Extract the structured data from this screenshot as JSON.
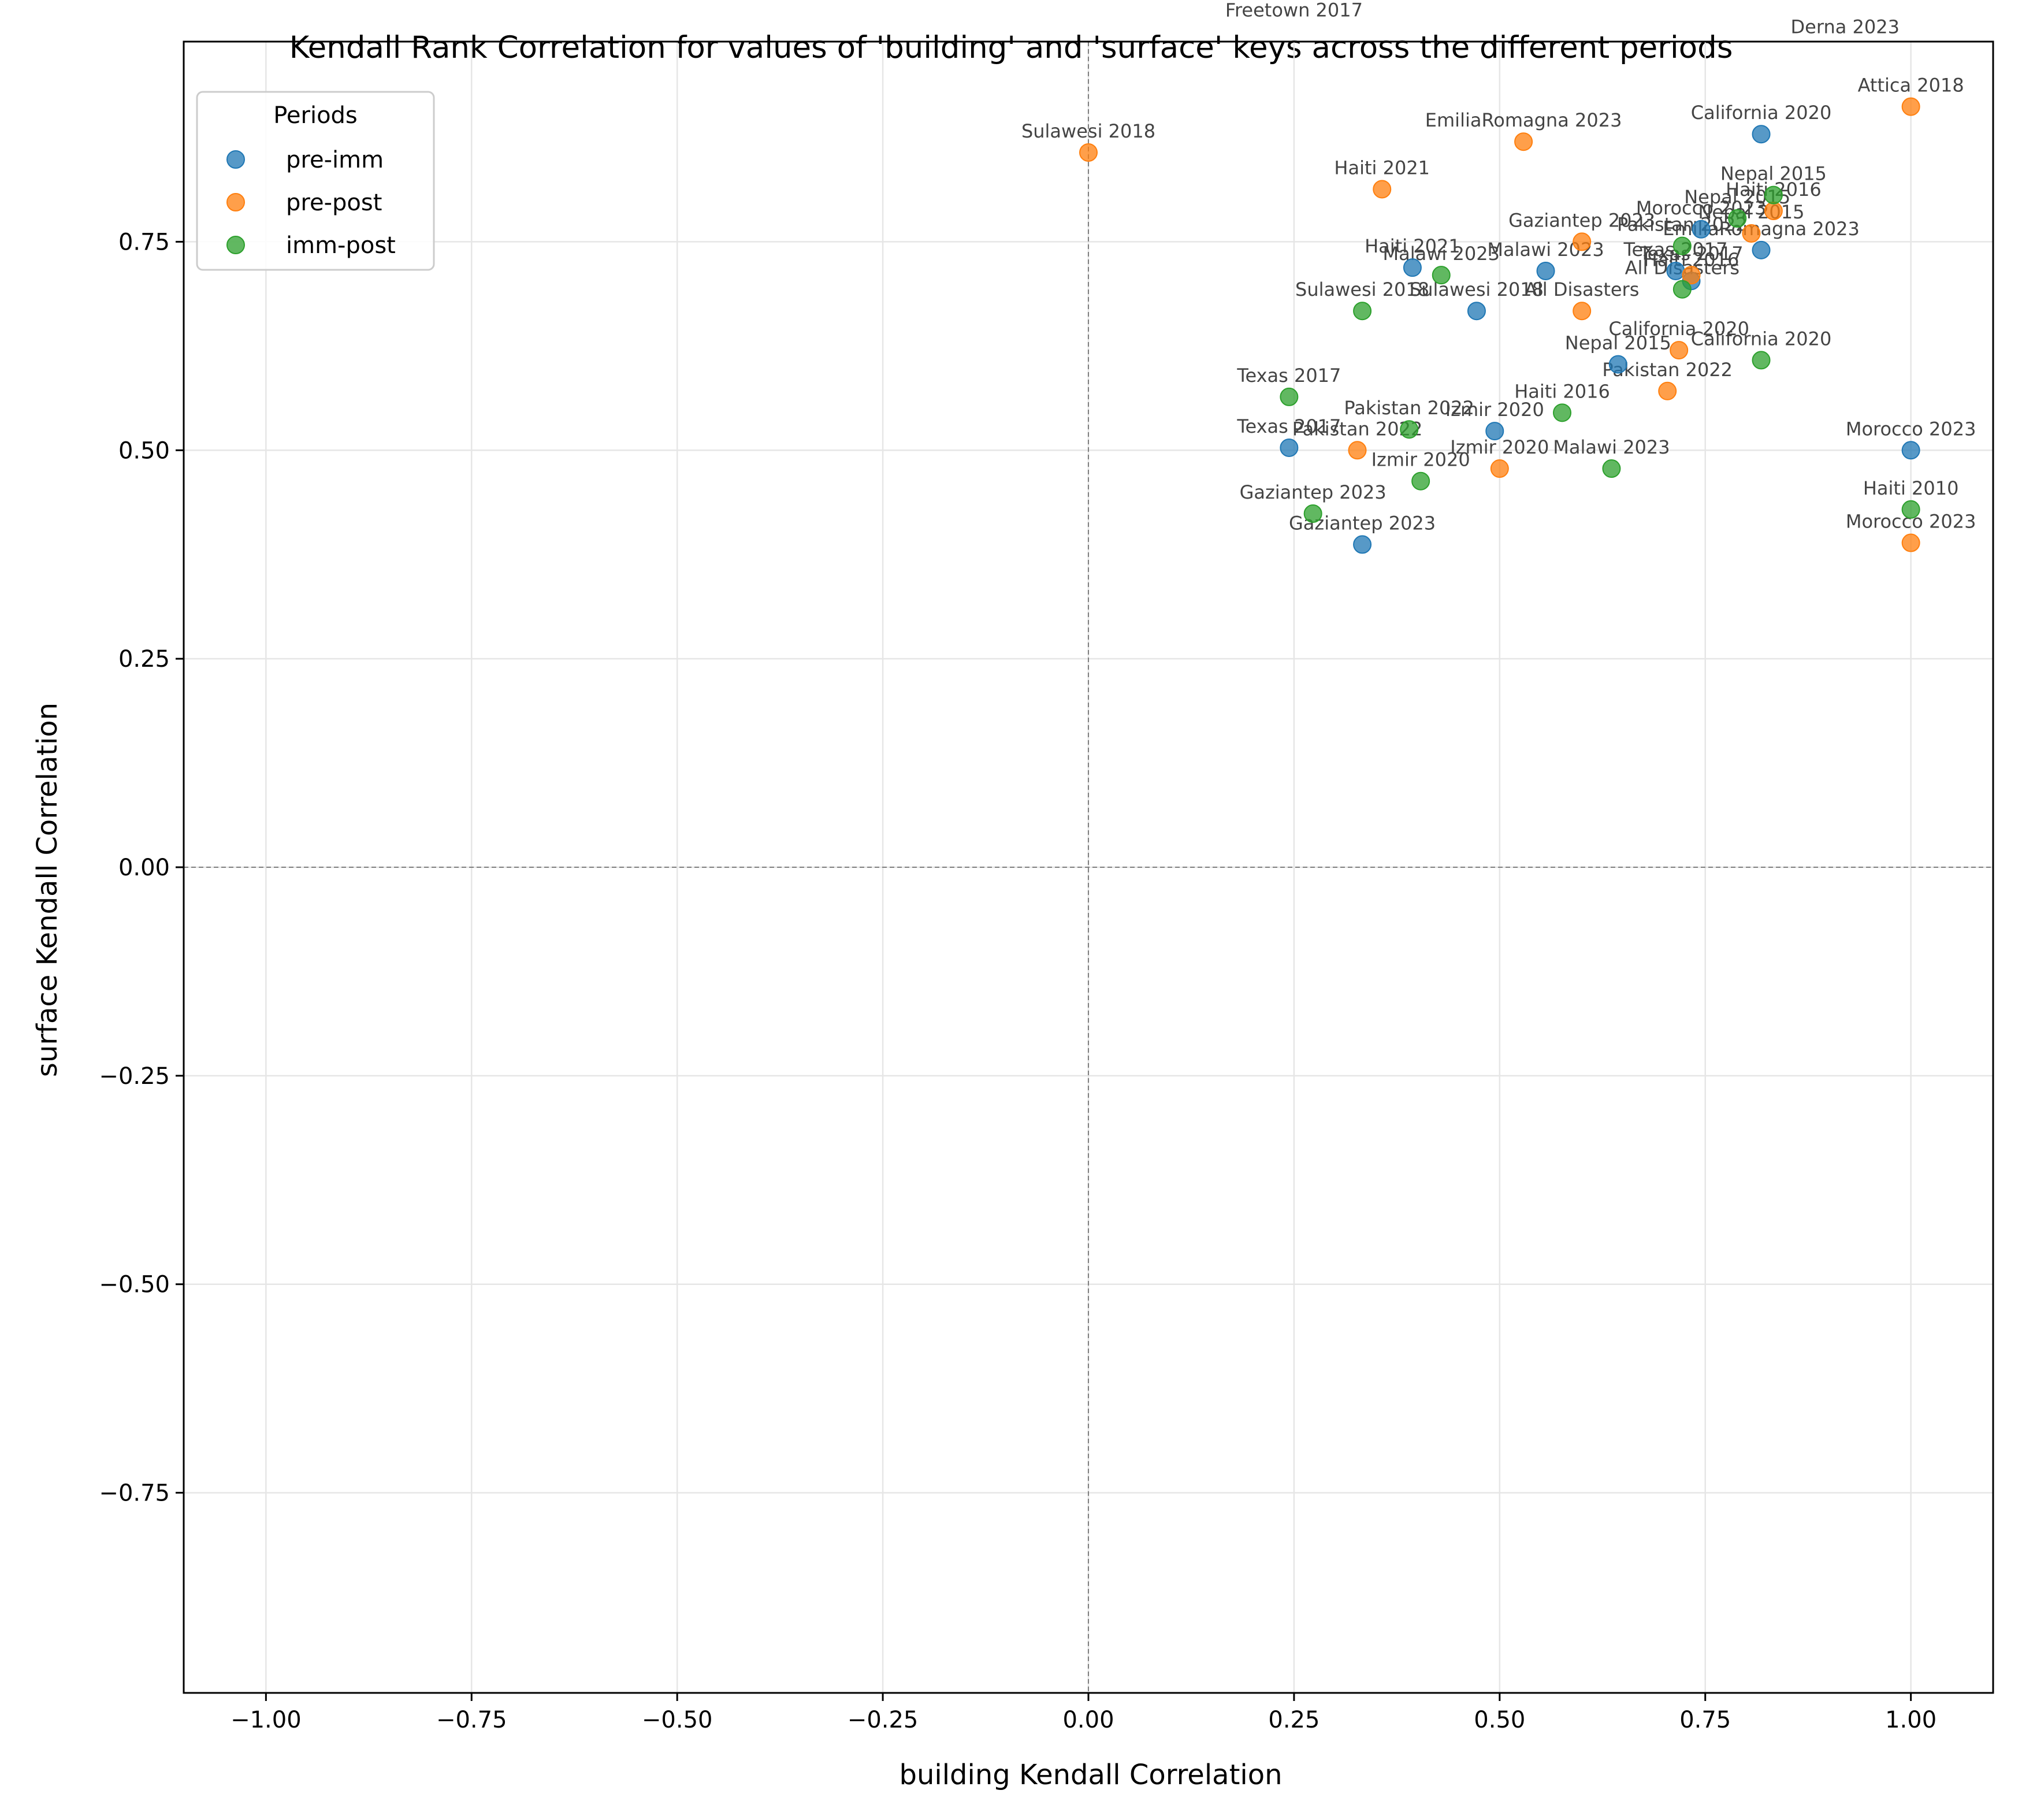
{
  "chart_data": {
    "type": "scatter",
    "title": "Kendall Rank Correlation for values of 'building' and 'surface' keys across the different periods",
    "xlabel": "building Kendall Correlation",
    "ylabel": "surface Kendall Correlation",
    "xlim": [
      -1.1,
      1.1
    ],
    "ylim": [
      -0.99,
      0.99
    ],
    "xticks": [
      -1.0,
      -0.75,
      -0.5,
      -0.25,
      0.0,
      0.25,
      0.5,
      0.75,
      1.0
    ],
    "yticks": [
      -0.75,
      -0.5,
      -0.25,
      0.0,
      0.25,
      0.5,
      0.75
    ],
    "xtick_labels": [
      "−1.00",
      "−0.75",
      "−0.50",
      "−0.25",
      "0.00",
      "0.25",
      "0.50",
      "0.75",
      "1.00"
    ],
    "ytick_labels": [
      "−0.75",
      "−0.50",
      "−0.25",
      "0.00",
      "0.25",
      "0.50",
      "0.75"
    ],
    "grid": true,
    "reference_lines": [
      {
        "axis": "x",
        "value": 0
      },
      {
        "axis": "y",
        "value": 0
      }
    ],
    "legend": {
      "title": "Periods",
      "placement": "top-left"
    },
    "series": [
      {
        "name": "pre-imm",
        "color": "#1f77b4",
        "points": [
          {
            "x": 0.818,
            "y": 0.879,
            "label": "California 2020"
          },
          {
            "x": 0.745,
            "y": 0.765,
            "label": "Morocco 2023"
          },
          {
            "x": 0.818,
            "y": 0.74,
            "label": "EmiliaRomagna 2023"
          },
          {
            "x": 0.394,
            "y": 0.719,
            "label": "Haiti 2021"
          },
          {
            "x": 0.556,
            "y": 0.715,
            "label": "Malawi 2023"
          },
          {
            "x": 0.714,
            "y": 0.715,
            "label": "Texas 2017"
          },
          {
            "x": 0.733,
            "y": 0.703,
            "label": "Haiti 2016"
          },
          {
            "x": 0.472,
            "y": 0.667,
            "label": "Sulawesi 2018"
          },
          {
            "x": 0.644,
            "y": 0.603,
            "label": "Nepal 2015"
          },
          {
            "x": 0.494,
            "y": 0.523,
            "label": "Izmir 2020"
          },
          {
            "x": 0.244,
            "y": 0.503,
            "label": "Texas 2017"
          },
          {
            "x": 1.0,
            "y": 0.5,
            "label": "Morocco 2023"
          },
          {
            "x": 0.333,
            "y": 0.387,
            "label": "Gaziantep 2023"
          }
        ]
      },
      {
        "name": "pre-post",
        "color": "#ff7f0e",
        "points": [
          {
            "x": 1.0,
            "y": 0.912,
            "label": "Attica 2018"
          },
          {
            "x": 0.0,
            "y": 0.857,
            "label": "Sulawesi 2018"
          },
          {
            "x": 0.529,
            "y": 0.87,
            "label": "EmiliaRomagna 2023"
          },
          {
            "x": 0.357,
            "y": 0.813,
            "label": "Haiti 2021"
          },
          {
            "x": 0.833,
            "y": 0.787,
            "label": "Haiti 2016"
          },
          {
            "x": 0.806,
            "y": 0.76,
            "label": "Nepal 2015"
          },
          {
            "x": 0.6,
            "y": 0.75,
            "label": "Gaziantep 2023"
          },
          {
            "x": 0.733,
            "y": 0.71,
            "label": "Texas 2017"
          },
          {
            "x": 0.6,
            "y": 0.667,
            "label": "All Disasters"
          },
          {
            "x": 0.718,
            "y": 0.62,
            "label": "California 2020"
          },
          {
            "x": 0.704,
            "y": 0.571,
            "label": "Pakistan 2022"
          },
          {
            "x": 0.327,
            "y": 0.5,
            "label": "Pakistan 2022"
          },
          {
            "x": 0.5,
            "y": 0.478,
            "label": "Izmir 2020"
          },
          {
            "x": 1.0,
            "y": 0.389,
            "label": "Morocco 2023"
          }
        ]
      },
      {
        "name": "imm-post",
        "color": "#2ca02c",
        "points": [
          {
            "x": 0.833,
            "y": 0.806,
            "label": "Nepal 2015"
          },
          {
            "x": 0.789,
            "y": 0.778,
            "label": "Nepal 2015"
          },
          {
            "x": 0.722,
            "y": 0.745,
            "label": "Pakistan 2022"
          },
          {
            "x": 0.429,
            "y": 0.71,
            "label": "Malawi 2023"
          },
          {
            "x": 0.722,
            "y": 0.693,
            "label": "All Disasters"
          },
          {
            "x": 0.333,
            "y": 0.667,
            "label": "Sulawesi 2018"
          },
          {
            "x": 0.818,
            "y": 0.608,
            "label": "California 2020"
          },
          {
            "x": 0.244,
            "y": 0.564,
            "label": "Texas 2017"
          },
          {
            "x": 0.576,
            "y": 0.545,
            "label": "Haiti 2016"
          },
          {
            "x": 0.39,
            "y": 0.525,
            "label": "Pakistan 2022"
          },
          {
            "x": 0.636,
            "y": 0.478,
            "label": "Malawi 2023"
          },
          {
            "x": 0.404,
            "y": 0.463,
            "label": "Izmir 2020"
          },
          {
            "x": 1.0,
            "y": 0.429,
            "label": "Haiti 2010"
          },
          {
            "x": 0.273,
            "y": 0.424,
            "label": "Gaziantep 2023"
          }
        ]
      }
    ],
    "extra_labels": [
      {
        "x": 0.25,
        "y": 1.02,
        "label": "Freetown 2017"
      },
      {
        "x": 0.92,
        "y": 1.0,
        "label": "Derna 2023"
      }
    ]
  }
}
